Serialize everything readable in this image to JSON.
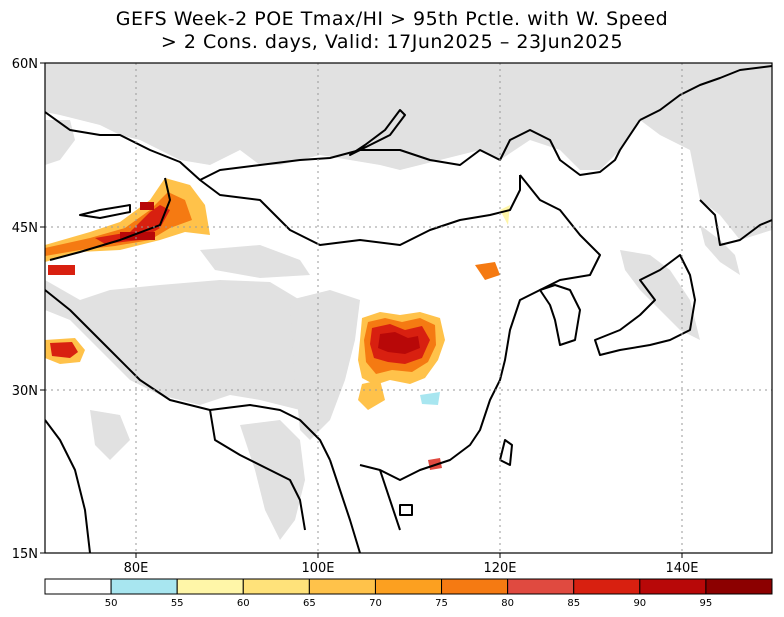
{
  "title_line1": "GEFS Week-2 POE Tmax/HI > 95th Pctle. with W. Speed",
  "title_line2": "> 2 Cons. days, Valid: 17Jun2025 – 23Jun2025",
  "map": {
    "lat_labels": [
      "60N",
      "45N",
      "30N",
      "15N"
    ],
    "lon_labels": [
      "80E",
      "100E",
      "120E",
      "140E"
    ],
    "land_color": "#e1e1e1",
    "ocean_color": "#ffffff",
    "grid": "dotted"
  },
  "legend": {
    "colors": [
      "#ffffff",
      "#a8e6f0",
      "#fff6a8",
      "#ffe27a",
      "#ffc24a",
      "#fca020",
      "#f57a12",
      "#e04a40",
      "#d82010",
      "#b80808",
      "#8c0000"
    ],
    "ticks": [
      "50",
      "55",
      "60",
      "65",
      "70",
      "75",
      "80",
      "85",
      "90",
      "95"
    ]
  }
}
